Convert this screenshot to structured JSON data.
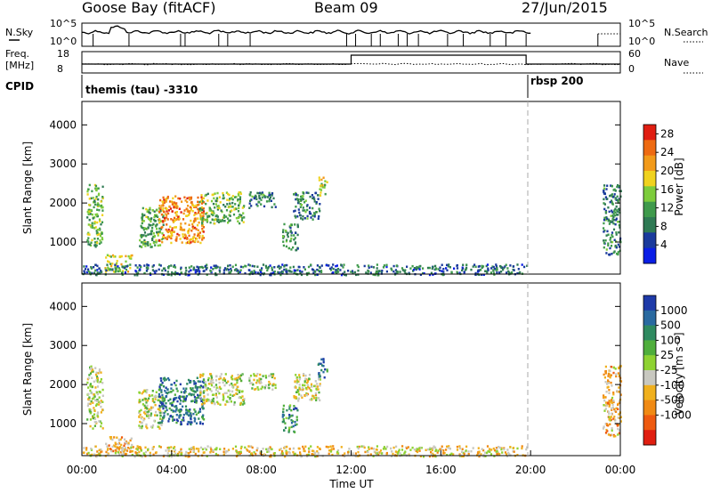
{
  "header": {
    "station": "Goose Bay (fitACF)",
    "beam": "Beam 09",
    "date": "27/Jun/2015"
  },
  "noise_panel": {
    "left_label": "N.Sky",
    "right_label": "N.Search",
    "left_ticks": [
      "10^5",
      "10^0"
    ],
    "right_ticks": [
      "10^5",
      "10^0"
    ]
  },
  "freq_panel": {
    "left_label_1": "Freq.",
    "left_label_2": "[MHz]",
    "right_label": "Nave",
    "left_ticks": [
      "18",
      "8"
    ],
    "right_ticks": [
      "60",
      "0"
    ]
  },
  "cpid": {
    "label": "CPID",
    "segments": [
      {
        "name": "themis (tau) -3310",
        "start_h": 0,
        "end_h": 20
      },
      {
        "name": "rbsp 200",
        "start_h": 20,
        "end_h": 24
      }
    ]
  },
  "chart_data": [
    {
      "type": "heatmap",
      "panel": "power",
      "ylabel": "Slant Range [km]",
      "xlabel": "",
      "xlim_hours": [
        0,
        24
      ],
      "ylim_km": [
        180,
        4600
      ],
      "y_ticks": [
        "1000",
        "2000",
        "3000",
        "4000"
      ],
      "colorbar": {
        "label": "Power [dB]",
        "ticks": [
          "4",
          "8",
          "12",
          "16",
          "20",
          "24",
          "28"
        ],
        "range": [
          0,
          30
        ],
        "colors": [
          "#0a1ee6",
          "#1a3a9c",
          "#2f7a54",
          "#3f9a4c",
          "#7dcc3c",
          "#f0d21e",
          "#f29a1a",
          "#ee6a12",
          "#e01e12"
        ]
      },
      "echo_regions": [
        {
          "t0": 0.2,
          "t1": 0.9,
          "r0": 900,
          "r1": 2500,
          "level": 0.45
        },
        {
          "t0": 1.0,
          "t1": 2.2,
          "r0": 250,
          "r1": 700,
          "level": 0.55
        },
        {
          "t0": 2.5,
          "t1": 3.6,
          "r0": 900,
          "r1": 1900,
          "level": 0.4
        },
        {
          "t0": 3.4,
          "t1": 5.4,
          "r0": 1000,
          "r1": 2200,
          "level": 0.75
        },
        {
          "t0": 5.2,
          "t1": 7.2,
          "r0": 1500,
          "r1": 2300,
          "level": 0.45
        },
        {
          "t0": 7.4,
          "t1": 8.6,
          "r0": 1900,
          "r1": 2300,
          "level": 0.3
        },
        {
          "t0": 8.9,
          "t1": 9.6,
          "r0": 800,
          "r1": 1500,
          "level": 0.35
        },
        {
          "t0": 9.4,
          "t1": 10.6,
          "r0": 1600,
          "r1": 2300,
          "level": 0.3
        },
        {
          "t0": 10.5,
          "t1": 10.9,
          "r0": 2200,
          "r1": 2700,
          "level": 0.55
        },
        {
          "t0": 0.0,
          "t1": 19.8,
          "r0": 180,
          "r1": 450,
          "level": 0.25
        },
        {
          "t0": 23.2,
          "t1": 24.0,
          "r0": 700,
          "r1": 2500,
          "level": 0.3
        }
      ]
    },
    {
      "type": "heatmap",
      "panel": "velocity",
      "ylabel": "Slant Range [km]",
      "xlabel": "Time UT",
      "xlim_hours": [
        0,
        24
      ],
      "ylim_km": [
        180,
        4600
      ],
      "y_ticks": [
        "1000",
        "2000",
        "3000",
        "4000"
      ],
      "x_ticks": [
        "00:00",
        "04:00",
        "08:00",
        "12:00",
        "16:00",
        "20:00",
        "00:00"
      ],
      "colorbar": {
        "label": "Velocity [m s⁻¹]",
        "ticks": [
          "1000",
          "500",
          "100",
          "25",
          "-25",
          "-100",
          "-500",
          "-1000"
        ],
        "colors": [
          "#1e3aa8",
          "#2a6aa0",
          "#2f8a60",
          "#4fae3c",
          "#8ed232",
          "#c8c8c0",
          "#f0b01e",
          "#f08a14",
          "#ee5a10",
          "#e01e10"
        ]
      },
      "echo_regions": [
        {
          "t0": 0.2,
          "t1": 0.9,
          "r0": 900,
          "r1": 2500,
          "level": 0.5
        },
        {
          "t0": 1.0,
          "t1": 2.2,
          "r0": 250,
          "r1": 700,
          "level": 0.3
        },
        {
          "t0": 2.5,
          "t1": 3.6,
          "r0": 900,
          "r1": 1900,
          "level": 0.5
        },
        {
          "t0": 3.4,
          "t1": 5.4,
          "r0": 1000,
          "r1": 2200,
          "level": 0.8
        },
        {
          "t0": 5.2,
          "t1": 7.2,
          "r0": 1500,
          "r1": 2300,
          "level": 0.5
        },
        {
          "t0": 7.4,
          "t1": 8.6,
          "r0": 1900,
          "r1": 2300,
          "level": 0.5
        },
        {
          "t0": 8.9,
          "t1": 9.6,
          "r0": 800,
          "r1": 1500,
          "level": 0.75
        },
        {
          "t0": 9.4,
          "t1": 10.6,
          "r0": 1600,
          "r1": 2300,
          "level": 0.45
        },
        {
          "t0": 10.5,
          "t1": 10.9,
          "r0": 2200,
          "r1": 2700,
          "level": 0.85
        },
        {
          "t0": 0.0,
          "t1": 19.8,
          "r0": 180,
          "r1": 450,
          "level": 0.4
        },
        {
          "t0": 23.2,
          "t1": 24.0,
          "r0": 700,
          "r1": 2500,
          "level": 0.35
        }
      ]
    }
  ]
}
